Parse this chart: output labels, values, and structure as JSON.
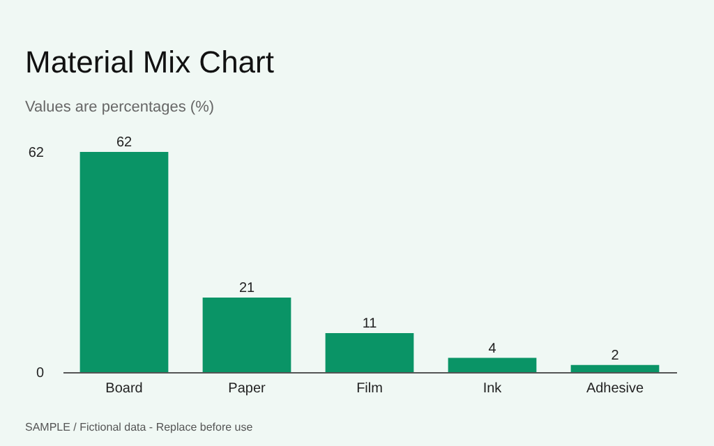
{
  "chart_data": {
    "type": "bar",
    "title": "Material Mix Chart",
    "subtitle": "Values are percentages (%)",
    "categories": [
      "Board",
      "Paper",
      "Film",
      "Ink",
      "Adhesive"
    ],
    "values": [
      62,
      21,
      11,
      4,
      2
    ],
    "color": "#0a9466",
    "ylim": [
      0,
      62
    ],
    "yticks": [
      0,
      62
    ],
    "data_labels": true,
    "annotations": [
      "SAMPLE / Fictional data - Replace before use"
    ]
  }
}
